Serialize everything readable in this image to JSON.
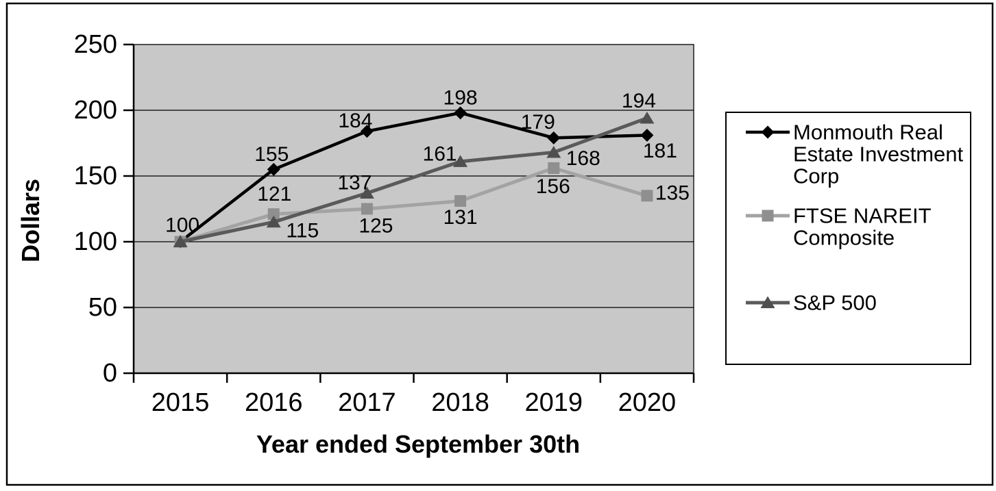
{
  "page": {
    "background": "#ffffff",
    "border_color": "#000000"
  },
  "chart_data": {
    "type": "line",
    "title": "",
    "xlabel": "Year ended September 30th",
    "ylabel": "Dollars",
    "categories": [
      "2015",
      "2016",
      "2017",
      "2018",
      "2019",
      "2020"
    ],
    "ytick_labels": [
      "0",
      "50",
      "100",
      "150",
      "200",
      "250"
    ],
    "yticks": [
      0,
      50,
      100,
      150,
      200,
      250
    ],
    "ylim": [
      0,
      250
    ],
    "grid": "horizontal",
    "plot_background": "#C8C8C8",
    "gridline_color": "#000000",
    "legend_position": "right",
    "series": [
      {
        "name": "Monmouth Real Estate Investment Corp",
        "legend_label_lines": [
          "Monmouth Real",
          "Estate Investment",
          "Corp"
        ],
        "marker": "diamond",
        "line_color": "#000000",
        "marker_color": "#000000",
        "values": [
          100,
          155,
          184,
          198,
          179,
          181
        ],
        "point_labels": [
          "100",
          "155",
          "184",
          "198",
          "179",
          "181"
        ],
        "label_offsets": [
          [
            3,
            -24
          ],
          [
            -3,
            -22
          ],
          [
            -17,
            -15
          ],
          [
            0,
            -22
          ],
          [
            -23,
            -23
          ],
          [
            19,
            23
          ]
        ]
      },
      {
        "name": "FTSE NAREIT Composite",
        "legend_label_lines": [
          "FTSE NAREIT",
          "Composite"
        ],
        "marker": "square",
        "line_color": "#A3A3A3",
        "marker_color": "#8F8F8F",
        "values": [
          100,
          121,
          125,
          131,
          156,
          135
        ],
        "point_labels": [
          "",
          "121",
          "125",
          "131",
          "156",
          "135"
        ],
        "label_offsets": [
          null,
          [
            1,
            -29
          ],
          [
            13,
            25
          ],
          [
            0,
            24
          ],
          [
            -1,
            27
          ],
          [
            37,
            -4
          ]
        ]
      },
      {
        "name": "S&P 500",
        "legend_label_lines": [
          "S&P 500"
        ],
        "marker": "triangle",
        "line_color": "#5A5A5A",
        "marker_color": "#4F4F4F",
        "values": [
          100,
          115,
          137,
          161,
          168,
          194
        ],
        "point_labels": [
          "",
          "115",
          "137",
          "161",
          "168",
          "194"
        ],
        "label_offsets": [
          null,
          [
            42,
            13
          ],
          [
            -18,
            -15
          ],
          [
            -30,
            -11
          ],
          [
            43,
            9
          ],
          [
            -12,
            -25
          ]
        ]
      }
    ]
  }
}
